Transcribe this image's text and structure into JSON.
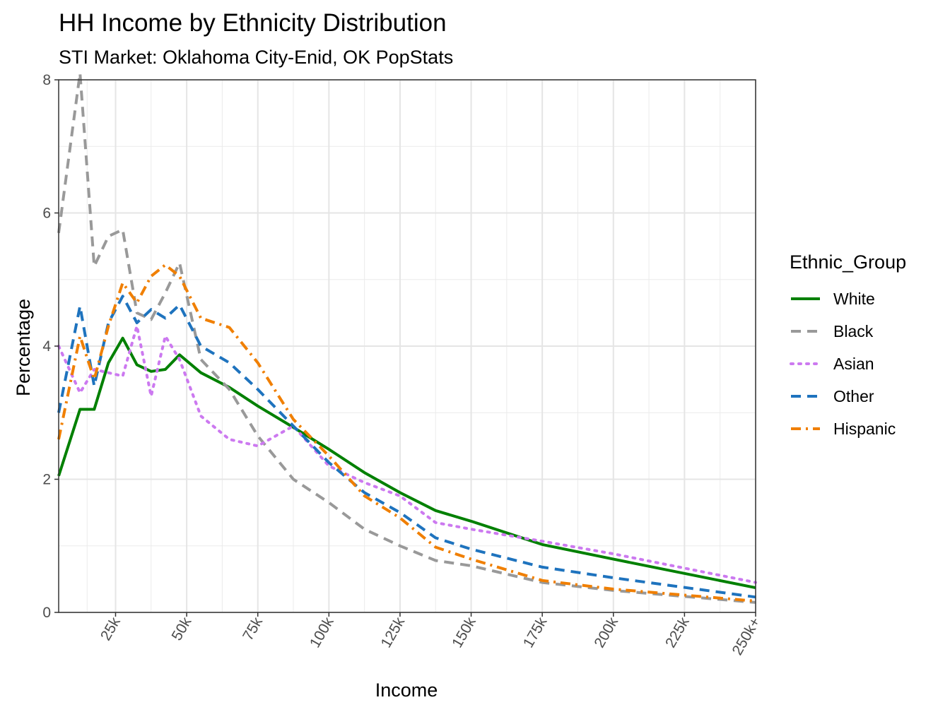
{
  "chart_data": {
    "type": "line",
    "title": "HH Income by Ethnicity Distribution",
    "subtitle": "STI Market: Oklahoma City-Enid, OK PopStats",
    "xlabel": "Income",
    "ylabel": "Percentage",
    "xlim": [
      5,
      250
    ],
    "ylim": [
      0,
      8
    ],
    "x_ticks": [
      {
        "value": 25,
        "label": "25k"
      },
      {
        "value": 50,
        "label": "50k"
      },
      {
        "value": 75,
        "label": "75k"
      },
      {
        "value": 100,
        "label": "100k"
      },
      {
        "value": 125,
        "label": "125k"
      },
      {
        "value": 150,
        "label": "150k"
      },
      {
        "value": 175,
        "label": "175k"
      },
      {
        "value": 200,
        "label": "200k"
      },
      {
        "value": 225,
        "label": "225k"
      },
      {
        "value": 250,
        "label": "250k+"
      }
    ],
    "y_ticks": [
      0,
      2,
      4,
      6,
      8
    ],
    "grid": true,
    "legend_title": "Ethnic_Group",
    "legend_position": "right",
    "x": [
      5,
      12.5,
      17.5,
      22.5,
      27.5,
      32.5,
      37.5,
      42.5,
      47.5,
      55,
      65,
      75,
      87.5,
      100,
      112.5,
      125,
      137.5,
      150,
      175,
      200,
      250
    ],
    "series": [
      {
        "name": "White",
        "color": "#008000",
        "dash": "solid",
        "values": [
          2.05,
          3.05,
          3.05,
          3.75,
          4.12,
          3.72,
          3.62,
          3.65,
          3.87,
          3.6,
          3.38,
          3.1,
          2.78,
          2.45,
          2.1,
          1.8,
          1.53,
          1.37,
          1.02,
          0.8,
          0.37
        ]
      },
      {
        "name": "Black",
        "color": "#999999",
        "dash": "dashed",
        "values": [
          5.7,
          8.1,
          5.2,
          5.65,
          5.75,
          4.5,
          4.4,
          4.8,
          5.25,
          3.8,
          3.35,
          2.65,
          2.0,
          1.65,
          1.25,
          1.0,
          0.78,
          0.7,
          0.45,
          0.33,
          0.15
        ]
      },
      {
        "name": "Asian",
        "color": "#cc79f0",
        "dash": "dotted",
        "values": [
          4.0,
          3.3,
          3.65,
          3.6,
          3.55,
          4.3,
          3.25,
          4.15,
          3.8,
          2.95,
          2.6,
          2.5,
          2.8,
          2.2,
          1.95,
          1.75,
          1.35,
          1.25,
          1.07,
          0.88,
          0.45
        ]
      },
      {
        "name": "Other",
        "color": "#1e73be",
        "dash": "dashed",
        "values": [
          3.0,
          4.6,
          3.4,
          4.35,
          4.75,
          4.35,
          4.55,
          4.42,
          4.62,
          4.0,
          3.75,
          3.35,
          2.8,
          2.25,
          1.8,
          1.5,
          1.12,
          0.95,
          0.68,
          0.52,
          0.23
        ]
      },
      {
        "name": "Hispanic",
        "color": "#f07f00",
        "dash": "dashdot",
        "values": [
          2.6,
          4.15,
          3.5,
          4.3,
          4.95,
          4.65,
          5.05,
          5.22,
          5.05,
          4.42,
          4.28,
          3.75,
          2.9,
          2.35,
          1.75,
          1.42,
          0.98,
          0.8,
          0.48,
          0.35,
          0.17
        ]
      }
    ]
  }
}
